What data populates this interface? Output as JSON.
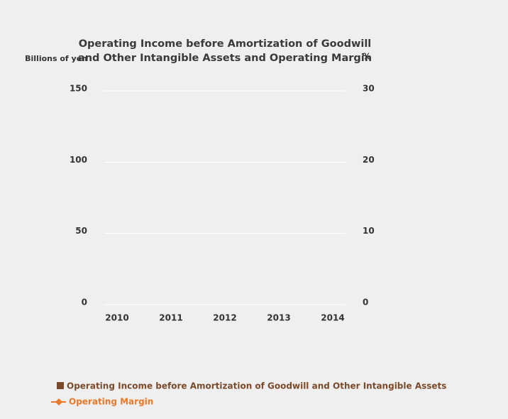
{
  "chart_data": {
    "type": "bar+line",
    "title": [
      "Operating Income before Amortization of Goodwill",
      "and Other Intangible Assets and Operating Margin"
    ],
    "y_label": "Billions of yen",
    "y2_label": "%",
    "categories": [
      "2010",
      "2011",
      "2012",
      "2013",
      "2014"
    ],
    "series": [
      {
        "name": "Operating Income before Amortization of Goodwill and Other Intangible Assets",
        "color": "#7b4a2a",
        "type": "bar",
        "values": [
          null,
          null,
          null,
          null,
          null
        ]
      },
      {
        "name": "Operating Margin",
        "color": "#e8792b",
        "type": "line",
        "axis": "y2",
        "values": [
          null,
          null,
          null,
          null,
          null
        ]
      }
    ],
    "ylim": [
      0,
      150
    ],
    "yticks": [
      0,
      50,
      100,
      150
    ],
    "y2lim": [
      0,
      30
    ],
    "y2ticks": [
      0,
      10,
      20,
      30
    ],
    "grid": true
  }
}
